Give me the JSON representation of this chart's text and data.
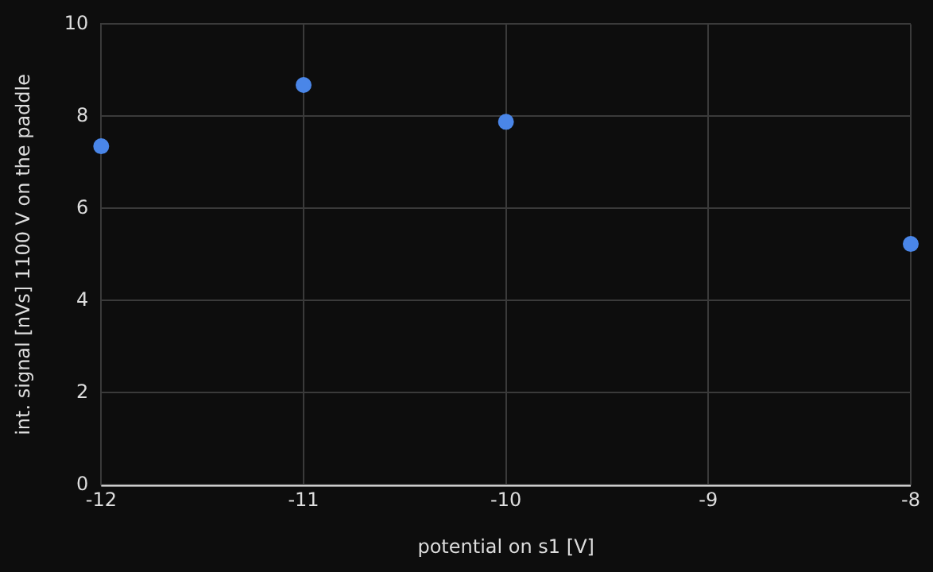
{
  "chart_data": {
    "type": "scatter",
    "xlabel": "potential on s1 [V]",
    "ylabel": "int. signal [nVs] 1100 V on the paddle",
    "x": [
      -12,
      -11,
      -10,
      -8
    ],
    "series": [
      {
        "color": "#4a86e8",
        "values": [
          7.35,
          8.68,
          7.88,
          5.23
        ]
      }
    ],
    "xlim": [
      -12,
      -8
    ],
    "xticks": [
      -12,
      -11,
      -10,
      -9,
      -8
    ],
    "ylim": [
      0,
      10
    ],
    "yticks": [
      0,
      2,
      4,
      6,
      8,
      10
    ],
    "grid": true,
    "legend": false,
    "marker": "circle"
  }
}
